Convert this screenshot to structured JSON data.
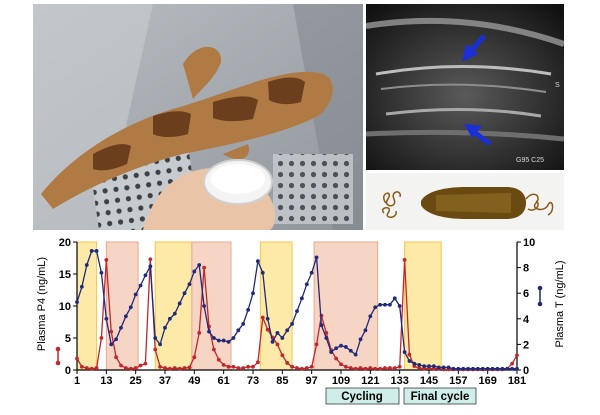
{
  "panels": {
    "ultrasound": {
      "s_label": "S",
      "gain_text": "G95 C25"
    }
  },
  "legend": {
    "cycling": "Cycling",
    "final_cycle": "Final cycle"
  },
  "colors": {
    "p4": "#c1272d",
    "testosterone": "#1f2a7a",
    "follicular_band": "#fde9a8",
    "luteal_band": "#f7d5c4",
    "band_border": "#f2c94c",
    "legend_bg": "#cfeeea",
    "arrow": "#1a2fd6"
  },
  "chart_data": {
    "type": "line",
    "xlabel": "",
    "x_ticks": [
      1,
      13,
      25,
      37,
      49,
      61,
      73,
      85,
      97,
      109,
      121,
      133,
      145,
      157,
      169,
      181
    ],
    "xlim": [
      1,
      181
    ],
    "y_left": {
      "label": "Plasma P4 (ng/mL)",
      "lim": [
        0,
        20
      ],
      "ticks": [
        0,
        5,
        10,
        15,
        20
      ]
    },
    "y_right": {
      "label": "Plasma T (ng/mL)",
      "lim": [
        0,
        10
      ],
      "ticks": [
        0,
        2,
        4,
        6,
        8,
        10
      ]
    },
    "shaded_regions": [
      {
        "type": "follicular",
        "start": 1,
        "end": 9
      },
      {
        "type": "luteal",
        "start": 13,
        "end": 26
      },
      {
        "type": "follicular",
        "start": 33,
        "end": 48
      },
      {
        "type": "luteal",
        "start": 48,
        "end": 64
      },
      {
        "type": "follicular",
        "start": 76,
        "end": 89
      },
      {
        "type": "luteal",
        "start": 98,
        "end": 124
      },
      {
        "type": "follicular",
        "start": 135,
        "end": 150
      }
    ],
    "series": [
      {
        "name": "P4",
        "axis": "left",
        "points": [
          [
            1,
            1.8
          ],
          [
            3,
            0.5
          ],
          [
            5,
            0.3
          ],
          [
            7,
            0.2
          ],
          [
            9,
            0.3
          ],
          [
            11,
            5.0
          ],
          [
            13,
            17.2
          ],
          [
            15,
            6.0
          ],
          [
            17,
            2.0
          ],
          [
            19,
            0.7
          ],
          [
            21,
            0.3
          ],
          [
            23,
            0.2
          ],
          [
            25,
            0.3
          ],
          [
            27,
            0.7
          ],
          [
            29,
            1.0
          ],
          [
            31,
            17.3
          ],
          [
            33,
            3.2
          ],
          [
            35,
            0.5
          ],
          [
            37,
            0.3
          ],
          [
            39,
            0.2
          ],
          [
            41,
            0.3
          ],
          [
            43,
            0.2
          ],
          [
            45,
            0.3
          ],
          [
            47,
            0.4
          ],
          [
            49,
            2.0
          ],
          [
            51,
            5.8
          ],
          [
            53,
            16.0
          ],
          [
            55,
            6.8
          ],
          [
            57,
            3.2
          ],
          [
            59,
            1.6
          ],
          [
            61,
            0.8
          ],
          [
            63,
            0.5
          ],
          [
            65,
            0.5
          ],
          [
            67,
            0.3
          ],
          [
            69,
            0.3
          ],
          [
            71,
            0.5
          ],
          [
            73,
            0.5
          ],
          [
            75,
            1.2
          ],
          [
            77,
            8.2
          ],
          [
            79,
            6.3
          ],
          [
            81,
            5.1
          ],
          [
            83,
            4.0
          ],
          [
            85,
            2.3
          ],
          [
            87,
            1.1
          ],
          [
            89,
            0.5
          ],
          [
            91,
            0.3
          ],
          [
            93,
            0.2
          ],
          [
            95,
            0.3
          ],
          [
            97,
            0.5
          ],
          [
            99,
            4.0
          ],
          [
            101,
            8.5
          ],
          [
            103,
            5.8
          ],
          [
            105,
            3.1
          ],
          [
            107,
            1.8
          ],
          [
            109,
            0.9
          ],
          [
            111,
            0.5
          ],
          [
            113,
            0.3
          ],
          [
            115,
            0.2
          ],
          [
            117,
            0.3
          ],
          [
            119,
            0.2
          ],
          [
            121,
            0.3
          ],
          [
            123,
            0.2
          ],
          [
            125,
            0.2
          ],
          [
            127,
            0.3
          ],
          [
            129,
            0.3
          ],
          [
            131,
            0.3
          ],
          [
            133,
            0.5
          ],
          [
            135,
            17.2
          ],
          [
            137,
            2.4
          ],
          [
            139,
            0.6
          ],
          [
            141,
            0.3
          ],
          [
            143,
            0.2
          ],
          [
            145,
            0.3
          ],
          [
            147,
            0.2
          ],
          [
            149,
            0.2
          ],
          [
            151,
            0.1
          ],
          [
            153,
            0.1
          ],
          [
            155,
            0.1
          ],
          [
            157,
            0.1
          ],
          [
            159,
            0.1
          ],
          [
            161,
            0.1
          ],
          [
            163,
            0.1
          ],
          [
            165,
            0.1
          ],
          [
            167,
            0.1
          ],
          [
            169,
            0.1
          ],
          [
            171,
            0.1
          ],
          [
            173,
            0.1
          ],
          [
            175,
            0.1
          ],
          [
            177,
            0.2
          ],
          [
            179,
            1.0
          ],
          [
            181,
            2.3
          ]
        ]
      },
      {
        "name": "T",
        "axis": "right",
        "points": [
          [
            1,
            5.3
          ],
          [
            3,
            6.5
          ],
          [
            5,
            8.2
          ],
          [
            7,
            9.3
          ],
          [
            9,
            9.3
          ],
          [
            11,
            7.6
          ],
          [
            13,
            4.0
          ],
          [
            15,
            2.0
          ],
          [
            17,
            2.4
          ],
          [
            19,
            3.3
          ],
          [
            21,
            4.2
          ],
          [
            23,
            4.9
          ],
          [
            25,
            5.9
          ],
          [
            27,
            6.6
          ],
          [
            29,
            7.4
          ],
          [
            31,
            8.1
          ],
          [
            33,
            2.5
          ],
          [
            35,
            2.0
          ],
          [
            37,
            3.3
          ],
          [
            39,
            4.0
          ],
          [
            41,
            4.4
          ],
          [
            43,
            5.2
          ],
          [
            45,
            6.0
          ],
          [
            47,
            6.7
          ],
          [
            49,
            7.7
          ],
          [
            51,
            8.2
          ],
          [
            53,
            5.0
          ],
          [
            55,
            3.0
          ],
          [
            57,
            2.5
          ],
          [
            59,
            2.3
          ],
          [
            61,
            2.3
          ],
          [
            63,
            2.2
          ],
          [
            65,
            2.5
          ],
          [
            67,
            3.1
          ],
          [
            69,
            3.6
          ],
          [
            71,
            4.7
          ],
          [
            73,
            6.0
          ],
          [
            75,
            8.5
          ],
          [
            77,
            7.6
          ],
          [
            79,
            4.0
          ],
          [
            81,
            2.2
          ],
          [
            83,
            2.9
          ],
          [
            85,
            2.5
          ],
          [
            87,
            3.1
          ],
          [
            89,
            3.6
          ],
          [
            91,
            4.6
          ],
          [
            93,
            5.6
          ],
          [
            95,
            6.7
          ],
          [
            97,
            7.6
          ],
          [
            99,
            8.8
          ],
          [
            101,
            3.5
          ],
          [
            103,
            2.5
          ],
          [
            105,
            1.4
          ],
          [
            107,
            1.7
          ],
          [
            109,
            1.9
          ],
          [
            111,
            1.8
          ],
          [
            113,
            1.5
          ],
          [
            115,
            1.2
          ],
          [
            117,
            2.4
          ],
          [
            119,
            3.1
          ],
          [
            121,
            4.2
          ],
          [
            123,
            4.9
          ],
          [
            125,
            5.1
          ],
          [
            127,
            5.1
          ],
          [
            129,
            5.1
          ],
          [
            131,
            5.6
          ],
          [
            133,
            5.0
          ],
          [
            135,
            1.4
          ],
          [
            137,
            0.7
          ],
          [
            139,
            0.5
          ],
          [
            141,
            0.4
          ],
          [
            143,
            0.3
          ],
          [
            145,
            0.3
          ],
          [
            147,
            0.3
          ],
          [
            149,
            0.2
          ],
          [
            151,
            0.2
          ],
          [
            153,
            0.2
          ],
          [
            155,
            0.1
          ],
          [
            157,
            0.1
          ],
          [
            159,
            0.1
          ],
          [
            161,
            0.1
          ],
          [
            163,
            0.1
          ],
          [
            165,
            0.1
          ],
          [
            167,
            0.1
          ],
          [
            169,
            0.1
          ],
          [
            171,
            0.1
          ],
          [
            173,
            0.1
          ],
          [
            175,
            0.1
          ],
          [
            177,
            0.1
          ],
          [
            179,
            0.1
          ],
          [
            181,
            0.1
          ]
        ]
      }
    ]
  }
}
